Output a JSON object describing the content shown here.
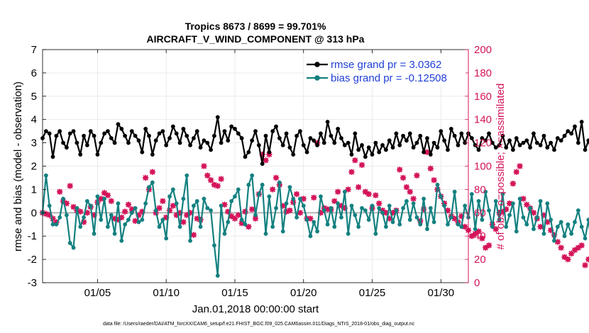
{
  "chart_data": {
    "type": "line",
    "title_line1": "Tropics 8673 / 8699 = 99.701%",
    "title_line2": "AIRCRAFT_V_WIND_COMPONENT @ 313 hPa",
    "xlabel": "Jan.01,2018 00:00:00 start",
    "ylabel_left": "rmse and bias (model - observation)",
    "ylabel_right": "# of obs: o=possible; ×=assimilated",
    "footer": "data file: /Users/raeder/DAI/ATM_forcXX/CAM6_setup/f.e21.FHIST_BGC.f09_025.CAM6assim.011/Diags_NTrS_2018-01/obs_diag_output.nc",
    "xlim": [
      1,
      32
    ],
    "ylim_left": [
      -3,
      7
    ],
    "ylim_right": [
      0,
      200
    ],
    "x_ticks": [
      5,
      10,
      15,
      20,
      25,
      30
    ],
    "x_tick_labels": [
      "01/05",
      "01/10",
      "01/15",
      "01/20",
      "01/25",
      "01/30"
    ],
    "y_left_ticks": [
      "-3",
      "-2",
      "-1",
      "0",
      "1",
      "2",
      "3",
      "4",
      "5",
      "6",
      "7"
    ],
    "y_right_ticks": [
      "0",
      "20",
      "40",
      "60",
      "80",
      "100",
      "120",
      "140",
      "160",
      "180",
      "200"
    ],
    "legend": [
      "rmse grand pr = 3.0362",
      "bias grand pr = -0.12508"
    ],
    "colors": {
      "rmse": "#000000",
      "bias": "#148080",
      "obs": "#d4145a",
      "zero": "#b0b0b0",
      "legendText": "#1f3fd6"
    },
    "x_start": 1.0,
    "x_step": 0.25,
    "series": [
      {
        "name": "rmse",
        "values": [
          3.2,
          3.5,
          3.4,
          2.4,
          3.3,
          3.5,
          3.0,
          2.8,
          3.4,
          3.5,
          3.0,
          2.5,
          3.3,
          2.9,
          3.5,
          3.3,
          2.5,
          3.0,
          3.4,
          3.5,
          3.2,
          3.0,
          3.8,
          3.6,
          3.3,
          3.0,
          3.5,
          3.3,
          3.1,
          2.6,
          3.6,
          3.3,
          2.5,
          3.1,
          3.4,
          3.5,
          2.9,
          3.2,
          3.7,
          3.4,
          3.0,
          3.6,
          3.3,
          2.9,
          3.2,
          3.5,
          2.8,
          3.1,
          3.0,
          2.7,
          3.3,
          4.1,
          3.0,
          3.5,
          3.1,
          3.7,
          3.6,
          3.4,
          3.2,
          2.4,
          2.6,
          3.1,
          3.5,
          2.9,
          2.1,
          3.3,
          2.6,
          3.5,
          3.7,
          3.2,
          2.9,
          3.4,
          2.8,
          2.5,
          3.3,
          3.5,
          2.9,
          2.6,
          3.2,
          3.1,
          2.9,
          3.4,
          3.0,
          3.9,
          3.3,
          3.0,
          3.6,
          3.2,
          2.9,
          3.0,
          2.5,
          3.4,
          2.7,
          2.9,
          2.4,
          2.8,
          2.5,
          3.0,
          2.6,
          2.9,
          2.7,
          3.1,
          2.8,
          3.4,
          2.9,
          3.3,
          3.1,
          3.4,
          2.8,
          3.0,
          3.3,
          2.6,
          3.2,
          2.5,
          3.0,
          2.8,
          3.5,
          3.1,
          2.7,
          3.6,
          3.3,
          2.9,
          3.4,
          3.0,
          3.4,
          3.2,
          2.9,
          2.7,
          3.2,
          3.1,
          3.4,
          3.0,
          2.8,
          2.9,
          3.3,
          2.8,
          3.1,
          2.7,
          3.2,
          2.9,
          3.0,
          3.1,
          2.8,
          3.4,
          3.0,
          2.9,
          3.3,
          2.8,
          3.0,
          2.7,
          3.2,
          3.1,
          3.3,
          3.5,
          3.4,
          3.7,
          3.0,
          3.9,
          2.7,
          3.1,
          2.5,
          3.5
        ]
      },
      {
        "name": "bias",
        "values": [
          0.0,
          1.6,
          0.3,
          -0.5,
          -0.5,
          -0.2,
          0.6,
          -0.1,
          -1.3,
          -1.5,
          0.2,
          -0.6,
          -0.2,
          0.5,
          0.3,
          -0.9,
          0.7,
          -0.3,
          0.6,
          -0.6,
          -0.1,
          -0.9,
          0.4,
          -1.2,
          -0.5,
          -0.3,
          0.0,
          0.2,
          -0.4,
          -0.3,
          0.4,
          1.1,
          1.3,
          0.1,
          -0.6,
          -0.3,
          -1.1,
          0.7,
          1.0,
          0.4,
          -0.6,
          0.6,
          1.6,
          -1.2,
          0.3,
          0.5,
          -0.6,
          0.6,
          0.2,
          0.1,
          -1.4,
          -2.7,
          0.3,
          -0.9,
          -0.4,
          0.5,
          0.7,
          1.0,
          -0.3,
          -0.5,
          1.2,
          1.6,
          -0.1,
          0.8,
          1.2,
          -0.9,
          0.7,
          -0.6,
          0.2,
          1.3,
          -0.8,
          0.4,
          1.1,
          0.6,
          -0.2,
          0.6,
          0.3,
          -0.3,
          -1.0,
          -0.4,
          -0.8,
          0.7,
          0.1,
          -0.5,
          0.2,
          -0.6,
          0.4,
          -0.2,
          0.9,
          -0.9,
          0.3,
          -0.1,
          -0.6,
          0.2,
          0.1,
          -0.3,
          0.3,
          -0.9,
          0.2,
          0.0,
          -0.6,
          0.3,
          -0.4,
          0.1,
          -0.5,
          0.2,
          0.5,
          -0.3,
          0.4,
          -0.2,
          -0.5,
          0.6,
          -0.7,
          0.2,
          -0.4,
          1.2,
          0.7,
          0.3,
          -0.5,
          -0.2,
          0.9,
          -0.5,
          -0.6,
          0.3,
          -0.2,
          0.8,
          -0.7,
          0.5,
          -0.3,
          0.9,
          0.1,
          -0.6,
          0.5,
          -0.3,
          0.8,
          -0.6,
          -0.1,
          0.4,
          -0.8,
          0.6,
          -0.2,
          -0.5,
          0.2,
          -0.7,
          -0.2,
          0.5,
          -0.9,
          0.4,
          -0.3,
          -1.2,
          -0.6,
          -0.4,
          -1.0,
          -0.5,
          -0.9,
          -0.4,
          0.1,
          -0.6,
          -1.1,
          -0.3,
          -1.6,
          -0.5,
          1.2
        ]
      },
      {
        "name": "obs_possible",
        "values": [
          60,
          59,
          58,
          55,
          52,
          78,
          70,
          68,
          83,
          65,
          62,
          61,
          52,
          60,
          65,
          58,
          69,
          72,
          77,
          75,
          70,
          55,
          54,
          56,
          61,
          67,
          63,
          53,
          58,
          61,
          90,
          80,
          95,
          60,
          64,
          70,
          56,
          62,
          66,
          58,
          60,
          52,
          58,
          60,
          41,
          55,
          54,
          100,
          92,
          88,
          84,
          83,
          89,
          67,
          61,
          57,
          55,
          58,
          51,
          61,
          48,
          63,
          55,
          76,
          110,
          105,
          110,
          80,
          90,
          84,
          66,
          61,
          62,
          69,
          76,
          60,
          72,
          55,
          55,
          73,
          120,
          60,
          64,
          63,
          63,
          70,
          78,
          66,
          64,
          80,
          95,
          105,
          82,
          101,
          78,
          76,
          64,
          75,
          68,
          62,
          60,
          55,
          60,
          62,
          97,
          90,
          82,
          78,
          72,
          92,
          53,
          63,
          112,
          98,
          88,
          80,
          74,
          68,
          62,
          57,
          55,
          52,
          57,
          48,
          45,
          40,
          42,
          44,
          38,
          30,
          32,
          50,
          46,
          60,
          61,
          63,
          68,
          85,
          95,
          100,
          72,
          67,
          64,
          60,
          55,
          48,
          58,
          52,
          45,
          41,
          35,
          30,
          22,
          20,
          25,
          28,
          30,
          32,
          15,
          20,
          26,
          50,
          0
        ]
      },
      {
        "name": "obs_assimilated",
        "values": [
          60,
          59,
          58,
          55,
          52,
          78,
          70,
          68,
          83,
          65,
          62,
          61,
          52,
          60,
          65,
          58,
          69,
          72,
          77,
          75,
          70,
          55,
          54,
          56,
          61,
          67,
          63,
          53,
          58,
          61,
          90,
          80,
          95,
          60,
          64,
          70,
          56,
          62,
          66,
          58,
          60,
          52,
          58,
          60,
          41,
          55,
          54,
          100,
          92,
          88,
          84,
          83,
          89,
          67,
          61,
          57,
          55,
          58,
          51,
          61,
          48,
          63,
          55,
          76,
          110,
          105,
          110,
          80,
          90,
          84,
          66,
          61,
          62,
          69,
          76,
          60,
          72,
          55,
          55,
          73,
          120,
          60,
          64,
          63,
          63,
          70,
          78,
          66,
          64,
          80,
          95,
          105,
          82,
          101,
          78,
          76,
          64,
          75,
          68,
          62,
          60,
          55,
          60,
          62,
          97,
          90,
          82,
          78,
          72,
          92,
          53,
          63,
          112,
          98,
          88,
          80,
          74,
          68,
          62,
          57,
          55,
          52,
          57,
          48,
          45,
          40,
          42,
          44,
          38,
          30,
          32,
          50,
          46,
          60,
          61,
          63,
          68,
          85,
          95,
          100,
          72,
          67,
          64,
          60,
          55,
          48,
          58,
          52,
          45,
          41,
          35,
          30,
          22,
          20,
          25,
          28,
          30,
          32,
          15,
          20,
          26,
          50,
          0
        ]
      }
    ]
  }
}
